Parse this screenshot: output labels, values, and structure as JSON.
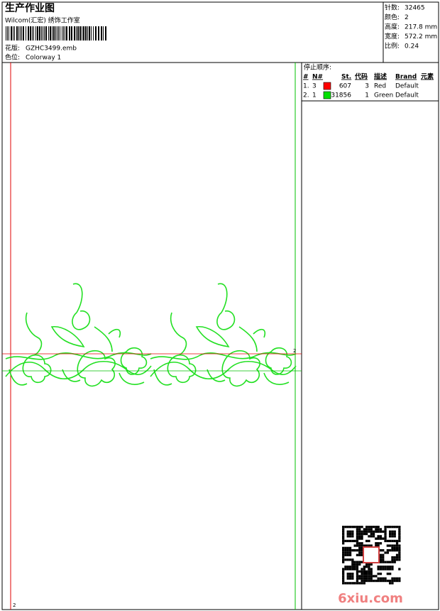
{
  "header": {
    "title": "生产作业图",
    "studio": "Wilcom(汇宏) 绣饰工作室",
    "design": {
      "label": "花版:",
      "value": "GZHC3499.emb"
    },
    "colorway": {
      "label": "色位:",
      "value": "Colorway 1"
    }
  },
  "stats": [
    {
      "label": "针数:",
      "value": "32465"
    },
    {
      "label": "颜色:",
      "value": "2"
    },
    {
      "label": "高度:",
      "value": "217.8 mm"
    },
    {
      "label": "宽度:",
      "value": "572.2 mm"
    },
    {
      "label": "比例:",
      "value": "0.24"
    }
  ],
  "stop_sequence": {
    "title": "停止顺序:",
    "columns": [
      "#",
      "N#",
      "St.",
      "代码",
      "描述",
      "Brand",
      "元素"
    ],
    "rows": [
      {
        "index": "1.",
        "needle": "3",
        "color": "#ff0000",
        "stitches": "607",
        "code": "3",
        "description": "Red",
        "brand": "Default"
      },
      {
        "index": "2.",
        "needle": "1",
        "color": "#00e000",
        "stitches": "31856",
        "code": "1",
        "description": "Green",
        "brand": "Default"
      }
    ]
  },
  "design_area": {
    "markers": [
      "2",
      "2"
    ]
  },
  "watermark": "6xiu.com"
}
